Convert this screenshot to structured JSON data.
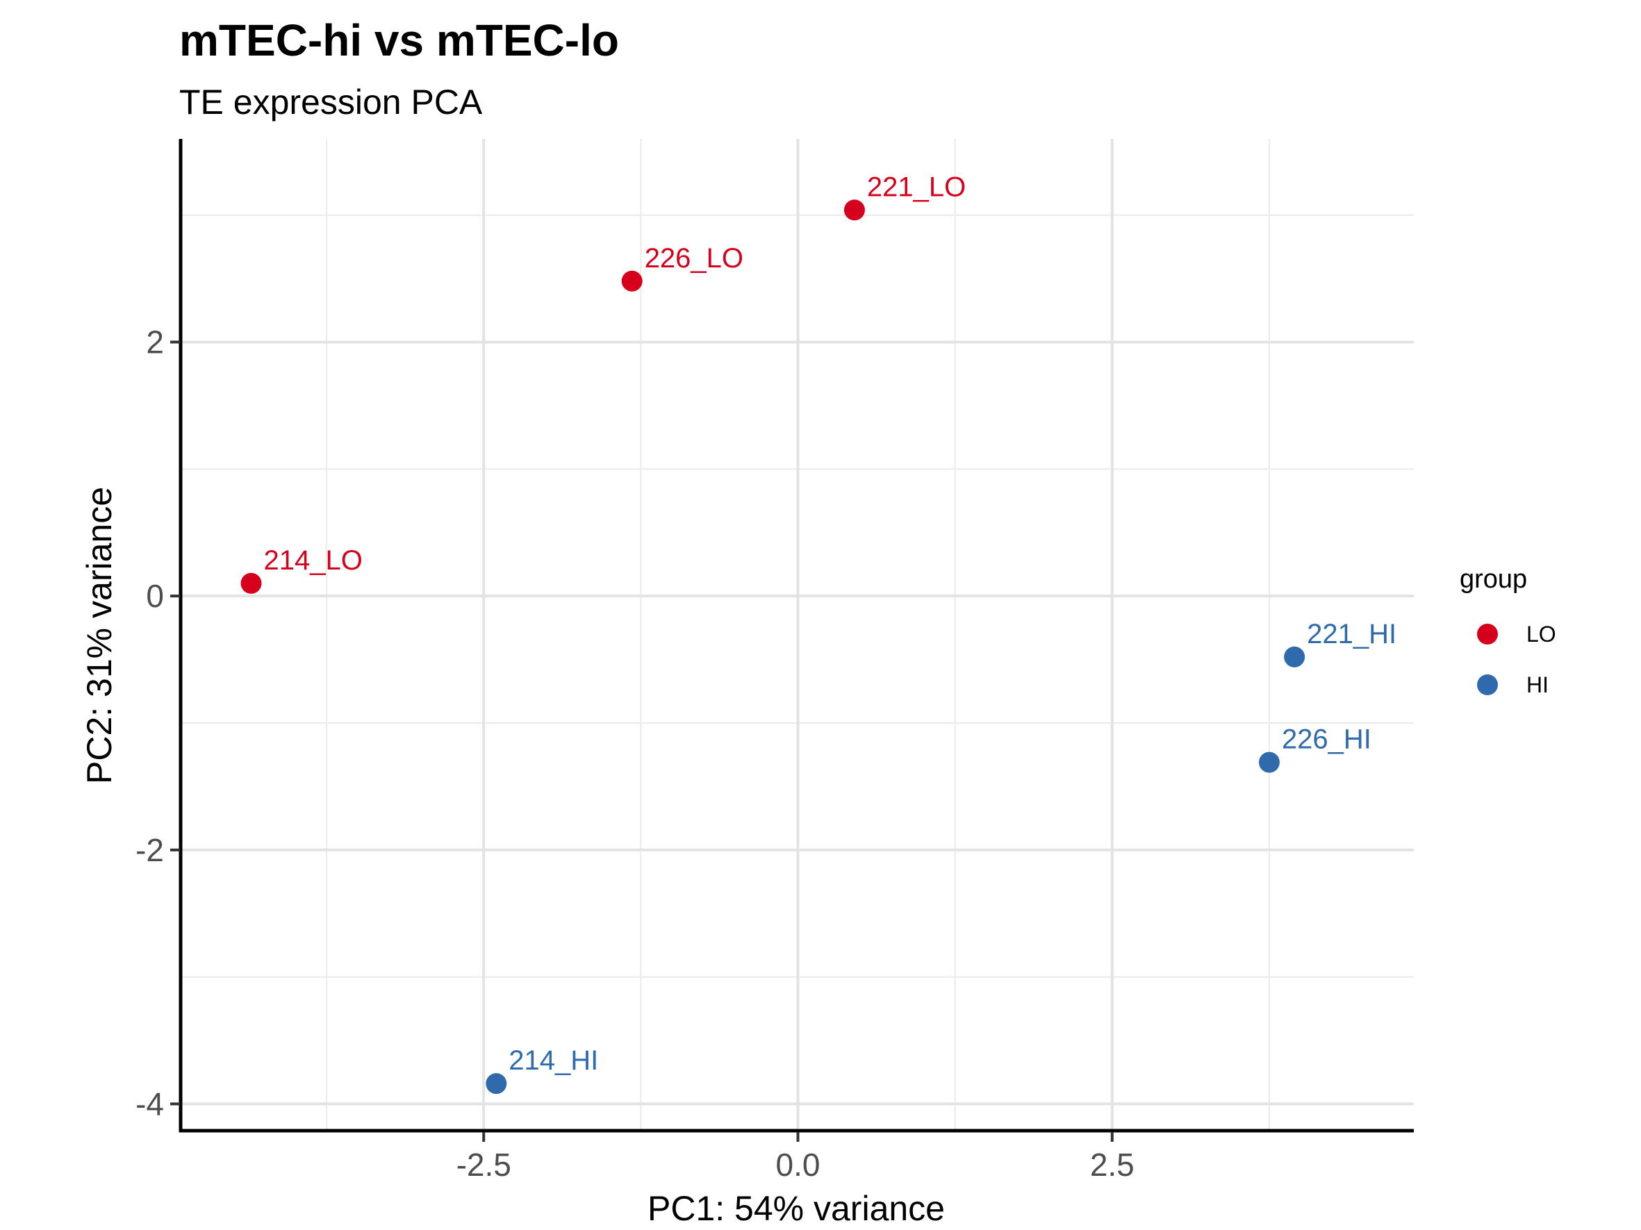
{
  "chart_data": {
    "type": "scatter",
    "title": "mTEC-hi vs mTEC-lo",
    "subtitle": "TE expression PCA",
    "xlabel": "PC1: 54% variance",
    "ylabel": "PC2: 31% variance",
    "xlim": [
      -4.9,
      4.9
    ],
    "ylim": [
      -4.2,
      3.6
    ],
    "x_ticks": [
      -2.5,
      0.0,
      2.5
    ],
    "x_tick_labels": [
      "-2.5",
      "0.0",
      "2.5"
    ],
    "y_ticks": [
      -4,
      -2,
      0,
      2
    ],
    "y_tick_labels": [
      "-4",
      "-2",
      "0",
      "2"
    ],
    "grid": true,
    "legend": {
      "title": "group",
      "placement": "right",
      "entries": [
        {
          "label": "LO",
          "color": "#d7001c"
        },
        {
          "label": "HI",
          "color": "#2e6aac"
        }
      ]
    },
    "series": [
      {
        "name": "LO",
        "color": "#d7001c",
        "points": [
          {
            "x": -4.35,
            "y": 0.1,
            "label": "214_LO"
          },
          {
            "x": -1.32,
            "y": 2.48,
            "label": "226_LO"
          },
          {
            "x": 0.45,
            "y": 3.04,
            "label": "221_LO"
          }
        ]
      },
      {
        "name": "HI",
        "color": "#2e6aac",
        "points": [
          {
            "x": -2.4,
            "y": -3.84,
            "label": "214_HI"
          },
          {
            "x": 3.95,
            "y": -0.48,
            "label": "221_HI"
          },
          {
            "x": 3.75,
            "y": -1.31,
            "label": "226_HI"
          }
        ]
      }
    ]
  }
}
